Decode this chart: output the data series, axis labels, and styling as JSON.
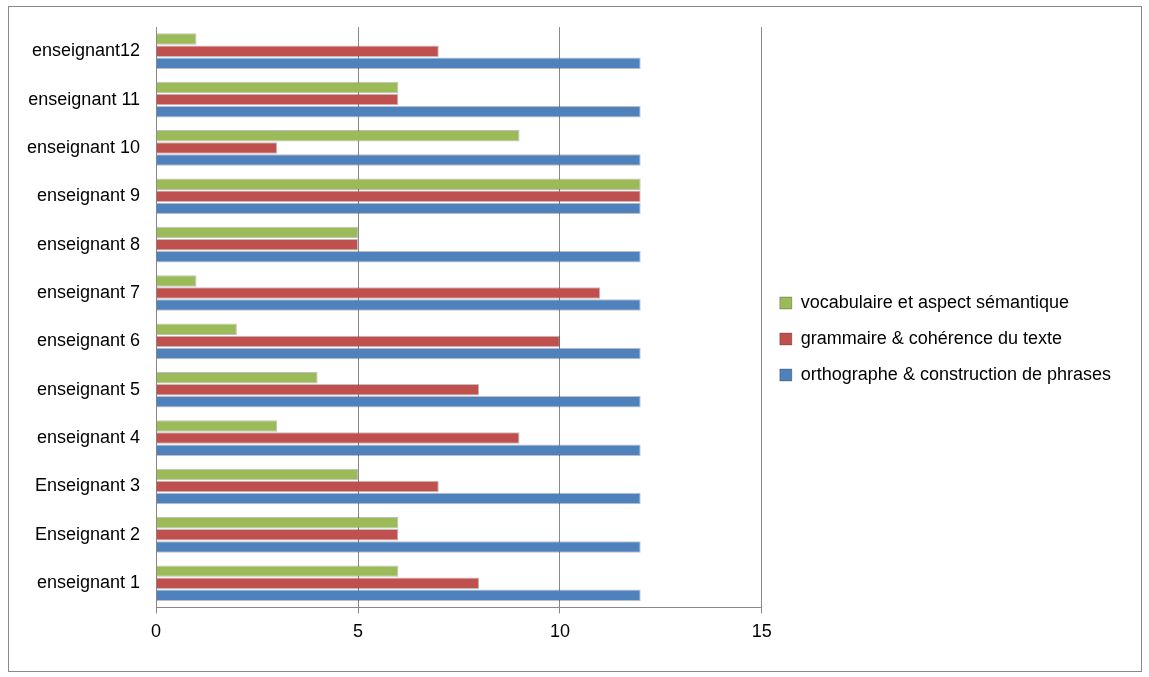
{
  "chart_data": {
    "type": "bar",
    "orientation": "horizontal",
    "categories": [
      "enseignant12",
      "enseignant 11",
      "enseignant 10",
      "enseignant 9",
      "enseignant 8",
      "enseignant 7",
      "enseignant 6",
      "enseignant 5",
      "enseignant 4",
      "Enseignant 3",
      "Enseignant 2",
      "enseignant 1"
    ],
    "series": [
      {
        "name": "vocabulaire et aspect sémantique",
        "color": "#9bbb59",
        "values": [
          1,
          6,
          9,
          12,
          5,
          1,
          2,
          4,
          3,
          5,
          6,
          6
        ]
      },
      {
        "name": "grammaire & cohérence du texte",
        "color": "#c0504d",
        "values": [
          7,
          6,
          3,
          12,
          5,
          11,
          10,
          8,
          9,
          7,
          6,
          8
        ]
      },
      {
        "name": "orthographe & construction de phrases",
        "color": "#4f81bd",
        "values": [
          12,
          12,
          12,
          12,
          12,
          12,
          12,
          12,
          12,
          12,
          12,
          12
        ]
      }
    ],
    "xlim": [
      0,
      15
    ],
    "xticks": [
      0,
      5,
      10,
      15
    ],
    "grid": "x",
    "legend": "right"
  }
}
